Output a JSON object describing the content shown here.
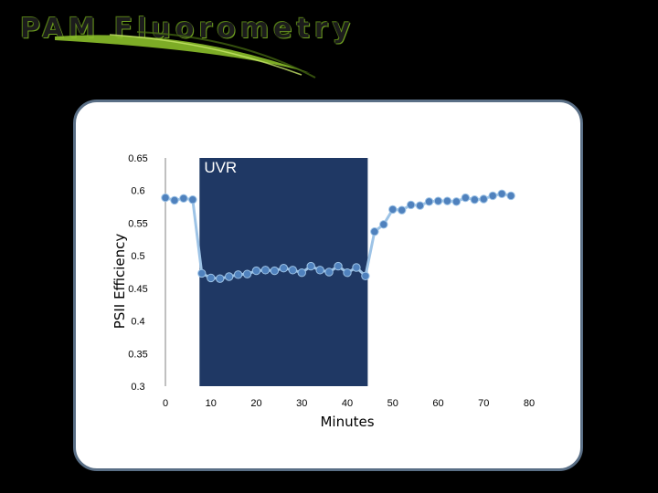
{
  "slide": {
    "title": "PAM Fluorometry"
  },
  "colors": {
    "background": "#000000",
    "accent_green": "#8bbf2a",
    "panel_border": "#5a6f86",
    "uvr_band": "#1f3864",
    "series_line": "#9dc3e6",
    "series_marker": "#4f81bd"
  },
  "chart_data": {
    "type": "line",
    "title": "",
    "xlabel": "Minutes",
    "ylabel": "PSII Efficiency",
    "xlim": [
      0,
      80
    ],
    "ylim": [
      0.3,
      0.65
    ],
    "x_ticks": [
      "0",
      "10",
      "20",
      "30",
      "40",
      "50",
      "60",
      "70",
      "80"
    ],
    "y_ticks": [
      "0.3",
      "0.35",
      "0.4",
      "0.45",
      "0.5",
      "0.55",
      "0.6",
      "0.65"
    ],
    "grid": false,
    "annotations": [
      {
        "type": "shaded-region",
        "label": "UVR",
        "x_start": 7.5,
        "x_end": 44.5,
        "color": "#1f3864"
      }
    ],
    "series": [
      {
        "x": [
          0,
          2,
          4,
          6,
          8,
          10,
          12,
          14,
          16,
          18,
          20,
          22,
          24,
          26,
          28,
          30,
          32,
          34,
          36,
          38,
          40,
          42,
          44,
          46,
          48,
          50,
          52,
          54,
          56,
          58,
          60,
          62,
          64,
          66,
          68,
          70,
          72,
          74,
          76
        ],
        "y": [
          0.589,
          0.585,
          0.588,
          0.586,
          0.473,
          0.466,
          0.465,
          0.468,
          0.471,
          0.472,
          0.477,
          0.478,
          0.477,
          0.481,
          0.478,
          0.474,
          0.484,
          0.478,
          0.475,
          0.484,
          0.474,
          0.482,
          0.469,
          0.537,
          0.548,
          0.571,
          0.57,
          0.578,
          0.577,
          0.583,
          0.584,
          0.584,
          0.583,
          0.589,
          0.586,
          0.587,
          0.592,
          0.595,
          0.592
        ]
      }
    ]
  }
}
